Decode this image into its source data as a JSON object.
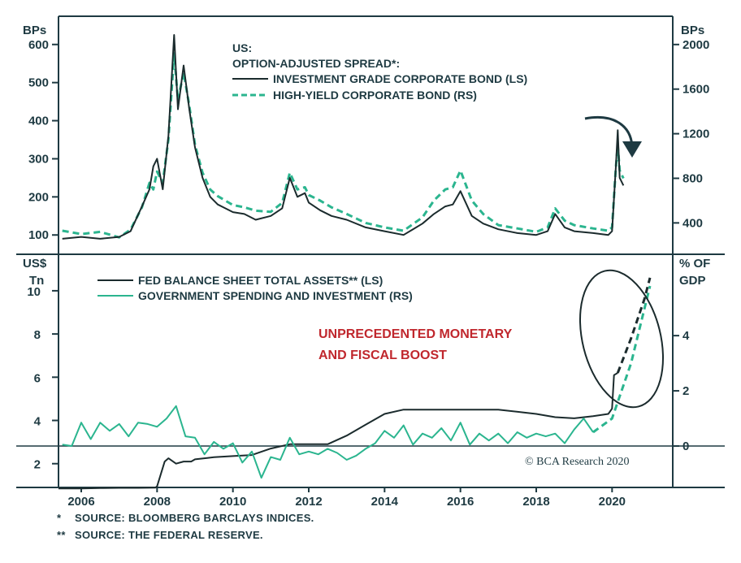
{
  "chart_data": [
    {
      "type": "line",
      "panel": "top",
      "left_unit_label": "BPs",
      "right_unit_label": "BPs",
      "title_lines": [
        "US:",
        "OPTION-ADJUSTED SPREAD*:"
      ],
      "left_axis": {
        "ticks": [
          100,
          200,
          300,
          400,
          500,
          600
        ],
        "range": [
          60,
          640
        ]
      },
      "right_axis": {
        "ticks": [
          400,
          800,
          1200,
          1600,
          2000
        ],
        "range": [
          155,
          2137
        ]
      },
      "series": [
        {
          "name": "INVESTMENT GRADE CORPORATE BOND (LS)",
          "axis": "left",
          "style": "solid",
          "color": "#1b2b2d",
          "x": [
            2005.5,
            2006.0,
            2006.5,
            2007.0,
            2007.3,
            2007.6,
            2007.8,
            2007.9,
            2008.0,
            2008.15,
            2008.3,
            2008.45,
            2008.55,
            2008.7,
            2008.85,
            2009.0,
            2009.2,
            2009.4,
            2009.6,
            2009.8,
            2010.0,
            2010.3,
            2010.6,
            2011.0,
            2011.3,
            2011.5,
            2011.7,
            2011.9,
            2012.0,
            2012.3,
            2012.6,
            2013.0,
            2013.5,
            2014.0,
            2014.5,
            2015.0,
            2015.3,
            2015.6,
            2015.8,
            2016.0,
            2016.3,
            2016.6,
            2017.0,
            2017.5,
            2018.0,
            2018.3,
            2018.5,
            2018.75,
            2019.0,
            2019.5,
            2019.9,
            2020.0,
            2020.1,
            2020.15,
            2020.2,
            2020.3
          ],
          "y": [
            90,
            95,
            90,
            95,
            110,
            175,
            220,
            280,
            300,
            220,
            360,
            625,
            430,
            545,
            430,
            330,
            250,
            200,
            180,
            170,
            160,
            155,
            140,
            150,
            170,
            250,
            200,
            210,
            185,
            165,
            150,
            140,
            120,
            110,
            100,
            130,
            155,
            175,
            180,
            215,
            150,
            130,
            115,
            105,
            100,
            110,
            155,
            120,
            110,
            105,
            100,
            110,
            280,
            375,
            250,
            230
          ]
        },
        {
          "name": "HIGH-YIELD CORPORATE BOND (RS)",
          "axis": "right",
          "style": "dashed",
          "color": "#2bb58f",
          "x": [
            2005.5,
            2006.0,
            2006.5,
            2007.0,
            2007.3,
            2007.6,
            2007.8,
            2007.9,
            2008.0,
            2008.15,
            2008.3,
            2008.45,
            2008.55,
            2008.7,
            2008.85,
            2009.0,
            2009.2,
            2009.4,
            2009.6,
            2009.8,
            2010.0,
            2010.3,
            2010.6,
            2011.0,
            2011.3,
            2011.5,
            2011.7,
            2011.9,
            2012.0,
            2012.3,
            2012.6,
            2013.0,
            2013.5,
            2014.0,
            2014.5,
            2015.0,
            2015.3,
            2015.6,
            2015.8,
            2016.0,
            2016.3,
            2016.6,
            2017.0,
            2017.5,
            2018.0,
            2018.3,
            2018.5,
            2018.75,
            2019.0,
            2019.5,
            2019.9,
            2020.0,
            2020.1,
            2020.15,
            2020.2,
            2020.3
          ],
          "y": [
            330,
            300,
            320,
            270,
            340,
            540,
            760,
            700,
            860,
            760,
            1150,
            1920,
            1500,
            1750,
            1450,
            1100,
            850,
            700,
            640,
            600,
            560,
            540,
            510,
            500,
            580,
            850,
            700,
            720,
            650,
            600,
            540,
            480,
            400,
            360,
            330,
            450,
            600,
            700,
            720,
            870,
            600,
            480,
            380,
            350,
            320,
            360,
            530,
            420,
            380,
            350,
            330,
            360,
            900,
            1100,
            870,
            800
          ]
        }
      ]
    },
    {
      "type": "line",
      "panel": "bottom",
      "left_unit_label_lines": [
        "US$",
        "Tn"
      ],
      "right_unit_label_lines": [
        "% OF",
        "GDP"
      ],
      "left_axis": {
        "ticks": [
          2,
          4,
          6,
          8,
          10
        ],
        "range": [
          0.9,
          11.5
        ]
      },
      "right_axis": {
        "ticks": [
          0,
          2,
          4
        ],
        "range": [
          -1.5,
          6.8
        ]
      },
      "x_axis": {
        "ticks": [
          "2006",
          "2008",
          "2010",
          "2012",
          "2014",
          "2016",
          "2018",
          "2020"
        ],
        "range": [
          2005.4,
          2021.6
        ]
      },
      "annotation": [
        "UNPRECEDENTED MONETARY",
        "AND FISCAL BOOST"
      ],
      "annotation_color": "#c0272d",
      "series": [
        {
          "name": "FED BALANCE SHEET TOTAL ASSETS** (LS)",
          "axis": "left",
          "style": "solid",
          "color": "#1b2b2d",
          "x": [
            2005.4,
            2006.0,
            2006.5,
            2007.0,
            2007.5,
            2007.95,
            2008.0,
            2008.2,
            2008.3,
            2008.5,
            2008.7,
            2008.9,
            2009.0,
            2009.5,
            2010.0,
            2010.5,
            2011.0,
            2011.5,
            2012.0,
            2012.5,
            2013.0,
            2013.5,
            2014.0,
            2014.5,
            2015.0,
            2016.0,
            2017.0,
            2018.0,
            2018.5,
            2019.0,
            2019.5,
            2019.9,
            2020.0,
            2020.05,
            2020.15
          ],
          "y": [
            0.85,
            0.85,
            0.87,
            0.88,
            0.88,
            0.89,
            0.95,
            2.1,
            2.25,
            2.0,
            2.1,
            2.1,
            2.2,
            2.3,
            2.35,
            2.4,
            2.7,
            2.9,
            2.9,
            2.9,
            3.3,
            3.8,
            4.3,
            4.5,
            4.5,
            4.5,
            4.5,
            4.3,
            4.15,
            4.1,
            4.2,
            4.3,
            4.55,
            6.1,
            6.2
          ]
        },
        {
          "name": "FED BALANCE SHEET TOTAL ASSETS** (LS) projection",
          "axis": "left",
          "style": "dashed",
          "color": "#1b2b2d",
          "x": [
            2020.15,
            2020.5,
            2020.85,
            2021.0
          ],
          "y": [
            6.2,
            7.8,
            9.6,
            10.6
          ]
        },
        {
          "name": "GOVERNMENT SPENDING AND INVESTMENT (RS)",
          "axis": "right",
          "style": "solid",
          "color": "#2bb58f",
          "x": [
            2005.5,
            2005.75,
            2006.0,
            2006.25,
            2006.5,
            2006.75,
            2007.0,
            2007.25,
            2007.5,
            2007.75,
            2008.0,
            2008.25,
            2008.5,
            2008.75,
            2009.0,
            2009.25,
            2009.5,
            2009.75,
            2010.0,
            2010.25,
            2010.5,
            2010.75,
            2011.0,
            2011.25,
            2011.5,
            2011.75,
            2012.0,
            2012.25,
            2012.5,
            2012.75,
            2013.0,
            2013.25,
            2013.5,
            2013.75,
            2014.0,
            2014.25,
            2014.5,
            2014.75,
            2015.0,
            2015.25,
            2015.5,
            2015.75,
            2016.0,
            2016.25,
            2016.5,
            2016.75,
            2017.0,
            2017.25,
            2017.5,
            2017.75,
            2018.0,
            2018.25,
            2018.5,
            2018.75,
            2019.0,
            2019.25,
            2019.5
          ],
          "y": [
            0.05,
            0.0,
            0.85,
            0.25,
            0.85,
            0.55,
            0.8,
            0.35,
            0.85,
            0.8,
            0.7,
            1.0,
            1.45,
            0.35,
            0.3,
            -0.3,
            0.15,
            -0.1,
            0.1,
            -0.6,
            -0.2,
            -1.15,
            -0.4,
            -0.5,
            0.3,
            -0.3,
            -0.2,
            -0.3,
            -0.1,
            -0.25,
            -0.5,
            -0.35,
            -0.1,
            0.1,
            0.55,
            0.3,
            0.75,
            0.05,
            0.45,
            0.3,
            0.65,
            0.2,
            0.85,
            0.05,
            0.45,
            0.2,
            0.45,
            0.1,
            0.5,
            0.3,
            0.45,
            0.35,
            0.45,
            0.1,
            0.6,
            1.0,
            0.5
          ]
        },
        {
          "name": "GOVERNMENT SPENDING AND INVESTMENT (RS) projection",
          "axis": "right",
          "style": "dashed",
          "color": "#2bb58f",
          "x": [
            2019.5,
            2020.0,
            2020.5,
            2021.0
          ],
          "y": [
            0.5,
            1.0,
            3.0,
            5.8
          ]
        }
      ]
    }
  ],
  "watermark": "© BCA Research 2020",
  "footnotes": [
    {
      "mark": "*",
      "text": "SOURCE: BLOOMBERG BARCLAYS INDICES."
    },
    {
      "mark": "**",
      "text": "SOURCE: THE FEDERAL RESERVE."
    }
  ],
  "colors": {
    "axis": "#1e3a42",
    "dark_line": "#1b2b2d",
    "green_line": "#2bb58f",
    "annotation": "#c0272d"
  }
}
